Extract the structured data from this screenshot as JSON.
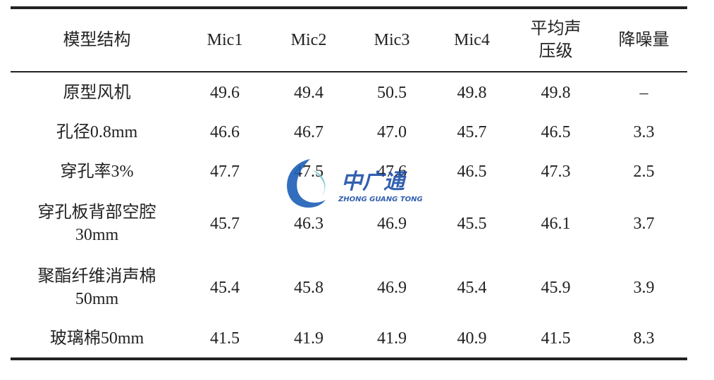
{
  "table": {
    "header": [
      "模型结构",
      "Mic1",
      "Mic2",
      "Mic3",
      "Mic4",
      "平均声压级",
      "降噪量"
    ],
    "rows": [
      [
        "原型风机",
        "49.6",
        "49.4",
        "50.5",
        "49.8",
        "49.8",
        "–"
      ],
      [
        "孔径0.8mm",
        "46.6",
        "46.7",
        "47.0",
        "45.7",
        "46.5",
        "3.3"
      ],
      [
        "穿孔率3%",
        "47.7",
        "47.5",
        "47.6",
        "46.5",
        "47.3",
        "2.5"
      ],
      [
        "穿孔板背部空腔30mm",
        "45.7",
        "46.3",
        "46.9",
        "45.5",
        "46.1",
        "3.7"
      ],
      [
        "聚酯纤维消声棉50mm",
        "45.4",
        "45.8",
        "46.9",
        "45.4",
        "45.9",
        "3.9"
      ],
      [
        "玻璃棉50mm",
        "41.5",
        "41.9",
        "41.9",
        "40.9",
        "41.5",
        "8.3"
      ]
    ]
  },
  "watermark": {
    "name": "中广通",
    "subtitle": "ZHONG GUANG TONG"
  }
}
